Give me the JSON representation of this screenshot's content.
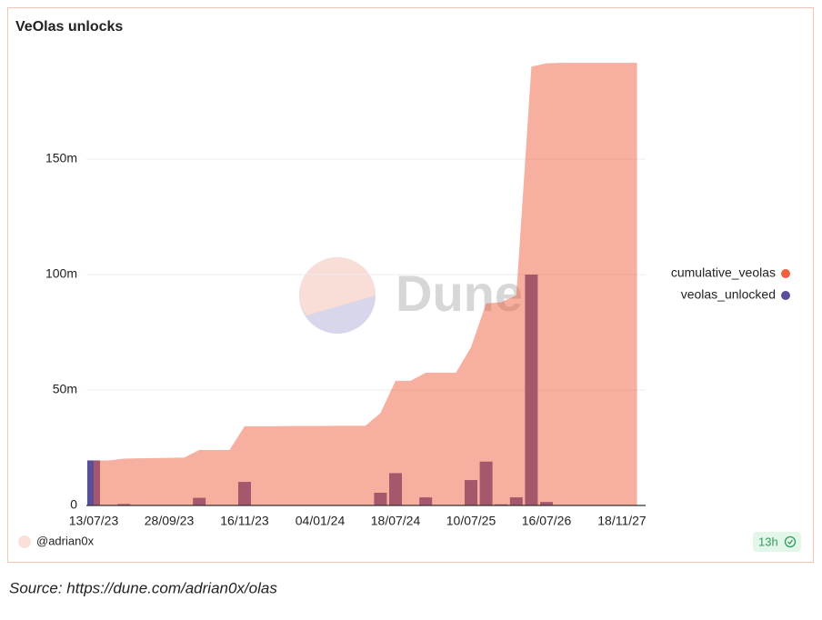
{
  "chart_data": {
    "type": "combo",
    "title": "VeOlas unlocks",
    "categories": [
      "13/07/23",
      null,
      null,
      null,
      null,
      "28/09/23",
      null,
      null,
      null,
      null,
      "16/11/23",
      null,
      null,
      null,
      null,
      "04/01/24",
      null,
      null,
      null,
      null,
      "18/07/24",
      null,
      null,
      null,
      null,
      "10/07/25",
      null,
      null,
      null,
      null,
      "16/07/26",
      null,
      null,
      null,
      null,
      "18/11/27",
      null
    ],
    "series": [
      {
        "name": "cumulative_veolas",
        "type": "area",
        "color": "#f0603f",
        "values": [
          19.5,
          19.5,
          20.3,
          20.4,
          20.5,
          20.6,
          20.7,
          24,
          24,
          24,
          34.3,
          34.3,
          34.3,
          34.4,
          34.4,
          34.4,
          34.5,
          34.5,
          34.5,
          40,
          54,
          54,
          57.5,
          57.5,
          57.5,
          68.5,
          87.5,
          88,
          91,
          190,
          191.5,
          191.7,
          191.7,
          191.7,
          191.7,
          191.7,
          191.7
        ]
      },
      {
        "name": "veolas_unlocked",
        "type": "bar",
        "color": "#5b4e99",
        "values": [
          19.5,
          0,
          0.6,
          0.1,
          0.1,
          0.1,
          0.1,
          3.3,
          0,
          0,
          10.2,
          0.1,
          0,
          0.1,
          0,
          0,
          0.1,
          0,
          0,
          5.5,
          14,
          0,
          3.5,
          0,
          0,
          11,
          19,
          0.5,
          3.5,
          100,
          1.5,
          0.2,
          0,
          0,
          0,
          0,
          0
        ]
      }
    ],
    "ylim": [
      0,
      200
    ],
    "yticks": [
      0,
      {
        "value": 50,
        "label": "50m"
      },
      {
        "value": 100,
        "label": "100m"
      },
      {
        "value": 150,
        "label": "150m"
      }
    ],
    "grid": true,
    "legend": "right"
  },
  "watermark": "Dune",
  "author": "@adrian0x",
  "freshness": "13h",
  "source": "Source: https://dune.com/adrian0x/olas"
}
